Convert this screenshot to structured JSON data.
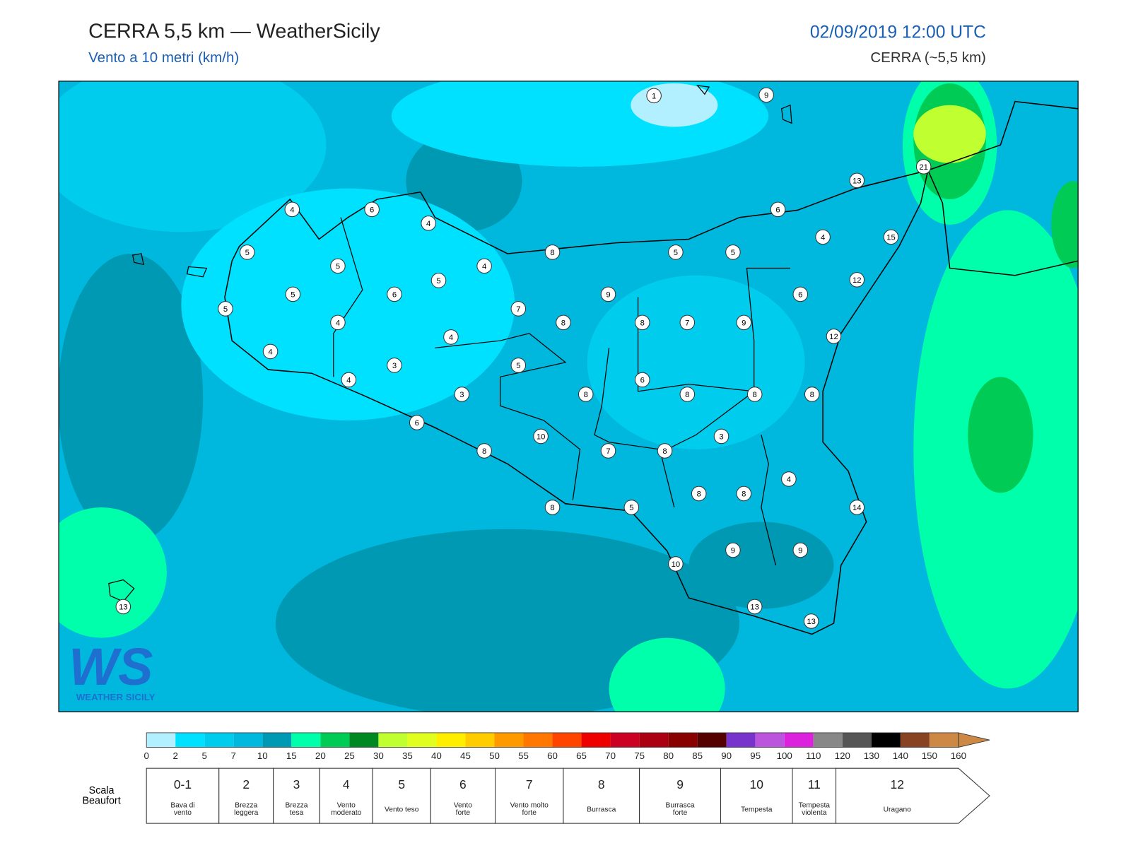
{
  "header": {
    "title": "CERRA 5,5 km — WeatherSicily",
    "subtitle": "Vento a 10 metri (km/h)",
    "datetime": "02/09/2019 12:00 UTC",
    "model": "CERRA (~5,5 km)"
  },
  "map": {
    "stations": [
      1,
      9,
      21,
      13,
      4,
      6,
      4,
      6,
      15,
      4,
      5,
      8,
      5,
      5,
      5,
      4,
      5,
      12,
      5,
      6,
      9,
      6,
      5,
      7,
      4,
      8,
      8,
      7,
      9,
      12,
      4,
      4,
      3,
      5,
      4,
      6,
      3,
      8,
      8,
      8,
      8,
      6,
      10,
      3,
      8,
      7,
      8,
      4,
      8,
      8,
      14,
      8,
      5,
      9,
      9,
      10,
      13,
      13,
      13
    ]
  },
  "logo": {
    "mark": "WS",
    "name": "WEATHER SICILY"
  },
  "colorbar": {
    "ticks": [
      0,
      2,
      5,
      7,
      10,
      15,
      20,
      25,
      30,
      35,
      40,
      45,
      50,
      55,
      60,
      65,
      70,
      75,
      80,
      85,
      90,
      95,
      100,
      110,
      120,
      130,
      140,
      150,
      160
    ],
    "colors": [
      "#b3f0ff",
      "#00e0ff",
      "#00ccee",
      "#00b8dd",
      "#0099b3",
      "#00ffaa",
      "#00cc55",
      "#008822",
      "#c0ff30",
      "#e0ff20",
      "#ffee00",
      "#ffcc00",
      "#ff9900",
      "#ff7700",
      "#ff4400",
      "#ee0000",
      "#cc0022",
      "#aa0011",
      "#880000",
      "#550000",
      "#7733cc",
      "#bb55dd",
      "#dd22dd",
      "#888888",
      "#555555",
      "#000000",
      "#884422",
      "#cc8844"
    ]
  },
  "beaufort": {
    "label": [
      "Scala",
      "Beaufort"
    ],
    "classes": [
      {
        "force": "0-1",
        "name": [
          "Bava di",
          "vento"
        ]
      },
      {
        "force": "2",
        "name": [
          "Brezza",
          "leggera"
        ]
      },
      {
        "force": "3",
        "name": [
          "Brezza",
          "tesa"
        ]
      },
      {
        "force": "4",
        "name": [
          "Vento",
          "moderato"
        ]
      },
      {
        "force": "5",
        "name": [
          "Vento teso"
        ]
      },
      {
        "force": "6",
        "name": [
          "Vento",
          "forte"
        ]
      },
      {
        "force": "7",
        "name": [
          "Vento molto",
          "forte"
        ]
      },
      {
        "force": "8",
        "name": [
          "Burrasca"
        ]
      },
      {
        "force": "9",
        "name": [
          "Burrasca",
          "forte"
        ]
      },
      {
        "force": "10",
        "name": [
          "Tempesta"
        ]
      },
      {
        "force": "11",
        "name": [
          "Tempesta",
          "violenta"
        ]
      },
      {
        "force": "12",
        "name": [
          "Uragano"
        ]
      }
    ]
  }
}
